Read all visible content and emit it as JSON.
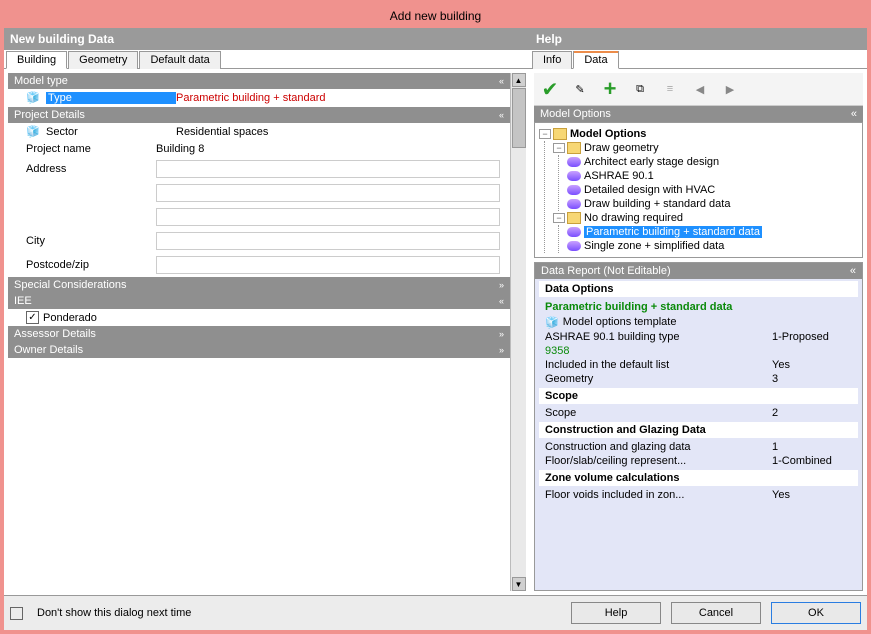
{
  "window": {
    "title": "Add new building"
  },
  "left_pane": {
    "title": "New building Data",
    "tabs": [
      "Building",
      "Geometry",
      "Default data"
    ],
    "active_tab": 0,
    "sections": {
      "model_type": {
        "title": "Model type",
        "type_label": "Type",
        "type_value": "Parametric building + standard"
      },
      "project_details": {
        "title": "Project Details",
        "sector_label": "Sector",
        "sector_value": "Residential spaces",
        "project_name_label": "Project name",
        "project_name_value": "Building 8",
        "address_label": "Address",
        "city_label": "City",
        "postcode_label": "Postcode/zip"
      },
      "special": {
        "title": "Special Considerations"
      },
      "iee": {
        "title": "IEE",
        "ponderado_label": "Ponderado",
        "ponderado_checked": true
      },
      "assessor": {
        "title": "Assessor Details"
      },
      "owner": {
        "title": "Owner Details"
      }
    }
  },
  "right_pane": {
    "title": "Help",
    "tabs": [
      "Info",
      "Data"
    ],
    "active_tab": 1,
    "model_options": {
      "title": "Model Options",
      "root": "Model Options",
      "draw_geometry": {
        "label": "Draw geometry",
        "children": [
          "Architect early stage design",
          "ASHRAE 90.1",
          "Detailed design with HVAC",
          "Draw building + standard data"
        ]
      },
      "no_drawing": {
        "label": "No drawing required",
        "children": [
          "Parametric building + standard data",
          "Single zone + simplified data"
        ],
        "selected_index": 0
      }
    },
    "report": {
      "title": "Data Report (Not Editable)",
      "data_options_hdr": "Data Options",
      "subtitle": "Parametric building + standard data",
      "rows": [
        {
          "label": "Model options template",
          "value": "",
          "icon": true
        },
        {
          "label": "ASHRAE 90.1 building type",
          "value": "1-Proposed"
        },
        {
          "label": "9358",
          "value": "",
          "green": true
        },
        {
          "label": "Included in the default list",
          "value": "Yes"
        },
        {
          "label": "Geometry",
          "value": "3"
        }
      ],
      "scope_hdr": "Scope",
      "scope_rows": [
        {
          "label": "Scope",
          "value": "2"
        }
      ],
      "construction_hdr": "Construction and Glazing Data",
      "construction_rows": [
        {
          "label": "Construction and glazing data",
          "value": "1"
        },
        {
          "label": "Floor/slab/ceiling represent...",
          "value": "1-Combined"
        }
      ],
      "zone_hdr": "Zone volume calculations",
      "zone_rows": [
        {
          "label": "Floor voids included in zon...",
          "value": "Yes"
        }
      ]
    }
  },
  "footer": {
    "dont_show_label": "Don't show this dialog next time",
    "help_btn": "Help",
    "cancel_btn": "Cancel",
    "ok_btn": "OK"
  },
  "colors": {
    "outer_bg": "#f0928e",
    "section_hdr": "#8f8f8f",
    "highlight": "#1e90ff",
    "report_bg": "#e3e6f7",
    "red_text": "#c00",
    "green_text": "#0a8a0a"
  }
}
